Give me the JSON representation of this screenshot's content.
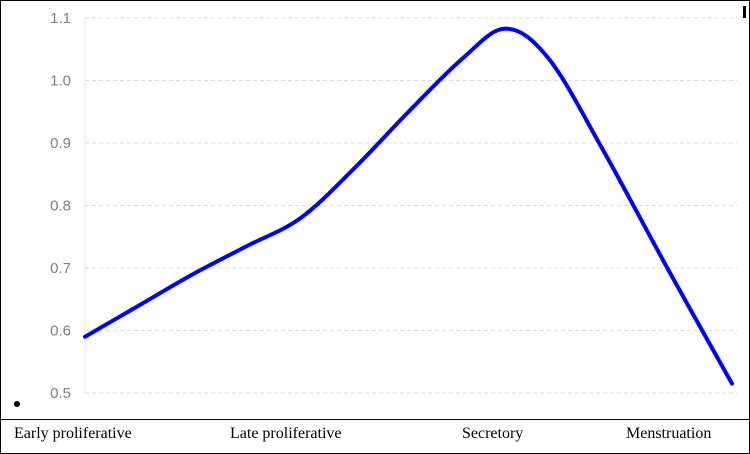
{
  "chart_data": {
    "type": "line",
    "title": "",
    "xlabel": "",
    "ylabel": "",
    "categories": [
      "Early proliferative",
      "Late proliferative",
      "Secretory",
      "Menstruation"
    ],
    "x_positions": [
      0.0,
      1.0,
      2.0,
      3.0
    ],
    "x_range": [
      0.0,
      3.0
    ],
    "ylim": [
      0.5,
      1.1
    ],
    "yticks": [
      0.5,
      0.6,
      0.7,
      0.8,
      0.9,
      1.0,
      1.1
    ],
    "grid": true,
    "legend": "none",
    "series": [
      {
        "color": "#0000ff",
        "curve": [
          [
            0.0,
            0.59
          ],
          [
            0.25,
            0.64
          ],
          [
            0.5,
            0.69
          ],
          [
            0.75,
            0.735
          ],
          [
            1.0,
            0.78
          ],
          [
            1.25,
            0.86
          ],
          [
            1.5,
            0.95
          ],
          [
            1.75,
            1.035
          ],
          [
            1.95,
            1.083
          ],
          [
            2.15,
            1.035
          ],
          [
            2.4,
            0.89
          ],
          [
            2.7,
            0.7
          ],
          [
            3.0,
            0.515
          ]
        ]
      }
    ],
    "colors": {
      "line": "#0000ff",
      "grid": "#dcdcdc",
      "tick_text": "#808080",
      "frame": "#000000"
    }
  }
}
